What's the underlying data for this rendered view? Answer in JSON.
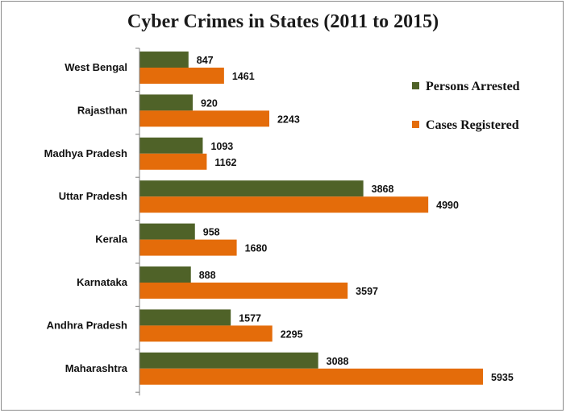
{
  "chart_data": {
    "type": "bar",
    "orientation": "horizontal",
    "title": "Cyber Crimes in States (2011 to 2015)",
    "xlabel": "",
    "ylabel": "",
    "xlim": [
      0,
      7000
    ],
    "grid": false,
    "legend_position": "right",
    "categories": [
      "West Bengal",
      "Rajasthan",
      "Madhya Pradesh",
      "Uttar Pradesh",
      "Kerala",
      "Karnataka",
      "Andhra Pradesh",
      "Maharashtra"
    ],
    "series": [
      {
        "name": "Persons Arrested",
        "color": "#4f6228",
        "values": [
          847,
          920,
          1093,
          3868,
          958,
          888,
          1577,
          3088
        ]
      },
      {
        "name": "Cases Registered",
        "color": "#e46c0a",
        "values": [
          1461,
          2243,
          1162,
          4990,
          1680,
          3597,
          2295,
          5935
        ]
      }
    ]
  }
}
